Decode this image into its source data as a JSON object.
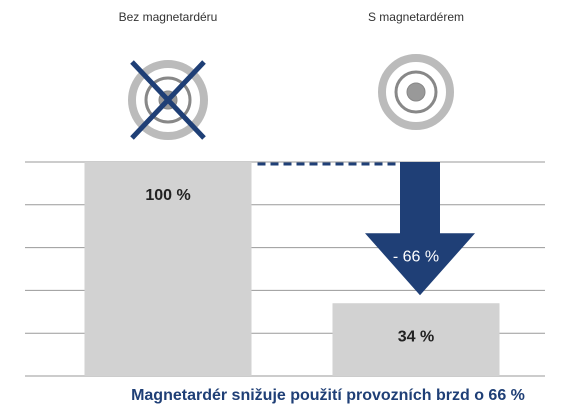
{
  "chart_data": {
    "type": "bar",
    "categories": [
      "Bez magnetardéru",
      "S magnetardérem"
    ],
    "values": [
      100,
      34
    ],
    "value_labels": [
      "100 %",
      "34 %"
    ],
    "color": "#d2d2d2",
    "ylim": [
      0,
      100
    ],
    "yticks": [
      0,
      20,
      40,
      60,
      80,
      100
    ],
    "grid": true,
    "reduction": {
      "value": -66,
      "label": "- 66 %",
      "color": "#1f3f76"
    },
    "caption": "Magnetardér snižuje použití provozních brzd o 66 %"
  }
}
